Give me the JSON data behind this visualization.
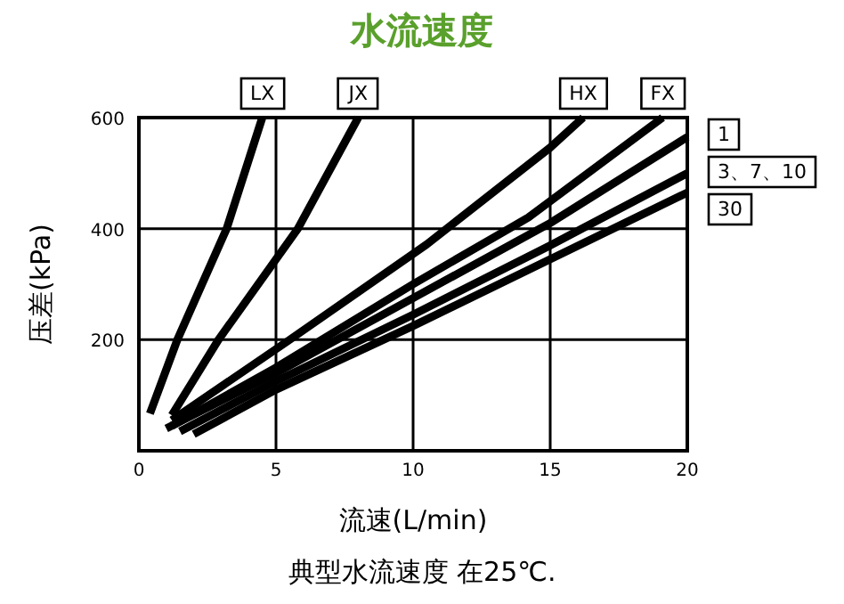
{
  "chart_data": {
    "type": "line",
    "title": "水流速度",
    "xlabel": "流速(L/min)",
    "ylabel": "压差(kPa)",
    "annotations": [
      "典型水流速度 在25℃."
    ],
    "xlim": [
      0,
      20
    ],
    "ylim": [
      0,
      600
    ],
    "xticks": [
      0,
      5,
      10,
      15,
      20
    ],
    "yticks": [
      200,
      400,
      600
    ],
    "grid": true,
    "legend": "top right",
    "marker": "none",
    "line_style": "solid",
    "series": [
      {
        "name": "LX",
        "color": "#000000",
        "x": [
          0.4,
          1.4,
          3.2,
          4.5
        ],
        "values": [
          67,
          200,
          400,
          600
        ]
      },
      {
        "name": "JX",
        "color": "#000000",
        "x": [
          1.2,
          2.9,
          5.8,
          8.0
        ],
        "values": [
          64,
          200,
          400,
          600
        ]
      },
      {
        "name": "HX",
        "color": "#000000",
        "x": [
          1.2,
          5.5,
          10.5,
          15,
          16.2
        ],
        "values": [
          55,
          200,
          372,
          546,
          600
        ]
      },
      {
        "name": "FX",
        "color": "#000000",
        "x": [
          1.2,
          5,
          10,
          14.2,
          19.1
        ],
        "values": [
          45,
          150,
          300,
          420,
          600
        ]
      },
      {
        "name": "1",
        "color": "#000000",
        "x": [
          1,
          5,
          10,
          15,
          20
        ],
        "values": [
          40,
          140,
          275,
          410,
          565
        ]
      },
      {
        "name": "3、7、10",
        "color": "#000000",
        "x": [
          1.5,
          5,
          10,
          15,
          20
        ],
        "values": [
          35,
          125,
          245,
          370,
          500
        ]
      },
      {
        "name": "30",
        "color": "#000000",
        "x": [
          2,
          5,
          10,
          15,
          20
        ],
        "values": [
          30,
          110,
          225,
          345,
          465
        ]
      }
    ]
  }
}
